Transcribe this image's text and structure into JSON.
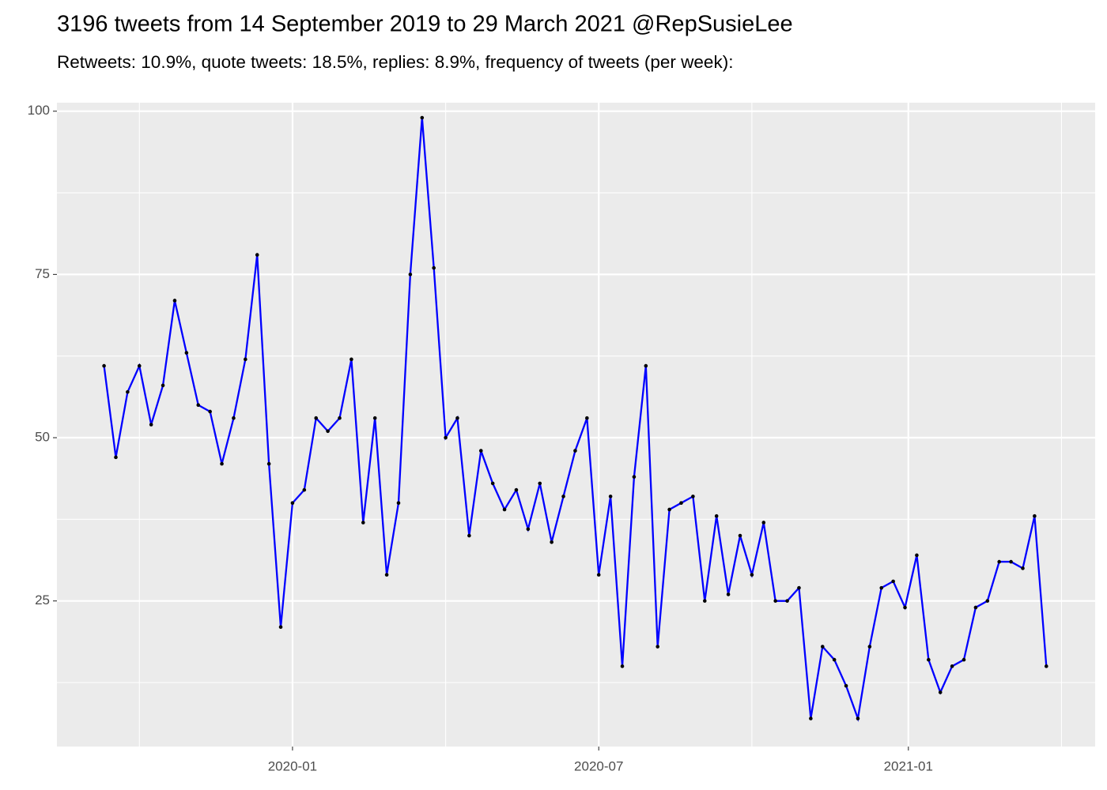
{
  "chart_data": {
    "type": "line",
    "title": "3196 tweets from 14 September 2019 to 29 March 2021 @RepSusieLee",
    "subtitle": "Retweets: 10.9%, quote tweets: 18.5%, replies: 8.9%, frequency of tweets (per week):",
    "x": [
      "2019-09-11",
      "2019-09-18",
      "2019-09-25",
      "2019-10-02",
      "2019-10-09",
      "2019-10-16",
      "2019-10-23",
      "2019-10-30",
      "2019-11-06",
      "2019-11-13",
      "2019-11-20",
      "2019-11-27",
      "2019-12-04",
      "2019-12-11",
      "2019-12-18",
      "2019-12-25",
      "2020-01-01",
      "2020-01-08",
      "2020-01-15",
      "2020-01-22",
      "2020-01-29",
      "2020-02-05",
      "2020-02-12",
      "2020-02-19",
      "2020-02-26",
      "2020-03-04",
      "2020-03-11",
      "2020-03-18",
      "2020-03-25",
      "2020-04-01",
      "2020-04-08",
      "2020-04-15",
      "2020-04-22",
      "2020-04-29",
      "2020-05-06",
      "2020-05-13",
      "2020-05-20",
      "2020-05-27",
      "2020-06-03",
      "2020-06-10",
      "2020-06-17",
      "2020-06-24",
      "2020-07-01",
      "2020-07-08",
      "2020-07-15",
      "2020-07-22",
      "2020-07-29",
      "2020-08-05",
      "2020-08-12",
      "2020-08-19",
      "2020-08-26",
      "2020-09-02",
      "2020-09-09",
      "2020-09-16",
      "2020-09-23",
      "2020-09-30",
      "2020-10-07",
      "2020-10-14",
      "2020-10-21",
      "2020-10-28",
      "2020-11-04",
      "2020-11-11",
      "2020-11-18",
      "2020-11-25",
      "2020-12-02",
      "2020-12-09",
      "2020-12-16",
      "2020-12-23",
      "2020-12-30",
      "2021-01-06",
      "2021-01-13",
      "2021-01-20",
      "2021-01-27",
      "2021-02-03",
      "2021-02-10",
      "2021-02-17",
      "2021-02-24",
      "2021-03-03",
      "2021-03-10",
      "2021-03-17",
      "2021-03-24"
    ],
    "values": [
      61,
      47,
      57,
      61,
      52,
      58,
      71,
      63,
      55,
      54,
      46,
      53,
      62,
      78,
      46,
      21,
      40,
      42,
      53,
      51,
      53,
      62,
      37,
      53,
      29,
      40,
      75,
      99,
      76,
      50,
      53,
      35,
      48,
      43,
      39,
      42,
      36,
      43,
      34,
      41,
      48,
      53,
      29,
      41,
      15,
      44,
      61,
      18,
      39,
      40,
      41,
      25,
      38,
      26,
      35,
      29,
      37,
      25,
      25,
      27,
      7,
      18,
      16,
      12,
      7,
      18,
      27,
      28,
      24,
      32,
      16,
      11,
      15,
      16,
      24,
      25,
      31,
      31,
      30,
      38,
      15
    ],
    "color": "#0000ff",
    "point_color": "#000000",
    "xlim": [
      "2019-08-14",
      "2021-04-22"
    ],
    "xticks": [
      {
        "value": "2020-01-01",
        "label": "2020-01"
      },
      {
        "value": "2020-07-01",
        "label": "2020-07"
      },
      {
        "value": "2021-01-01",
        "label": "2021-01"
      }
    ],
    "ylim": [
      2.7,
      101.3
    ],
    "yticks": [
      25,
      50,
      75,
      100
    ],
    "grid": true
  }
}
